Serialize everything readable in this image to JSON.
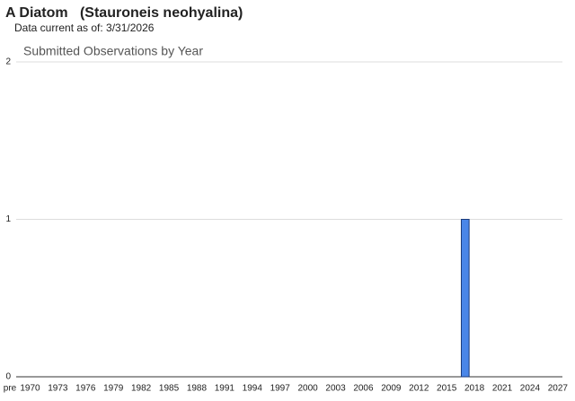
{
  "page_title": "A Diatom   (Stauroneis neohyalina)",
  "data_current": "Data current as of: 3/31/2026",
  "chart_data": {
    "type": "bar",
    "title": "Submitted Observations by Year",
    "categories": [
      "pre",
      "1970",
      null,
      null,
      "1973",
      null,
      null,
      "1976",
      null,
      null,
      "1979",
      null,
      null,
      "1982",
      null,
      null,
      "1985",
      null,
      null,
      "1988",
      null,
      null,
      "1991",
      null,
      null,
      "1994",
      null,
      null,
      "1997",
      null,
      null,
      "2000",
      null,
      null,
      "2003",
      null,
      null,
      "2006",
      null,
      null,
      "2009",
      null,
      null,
      "2012",
      null,
      null,
      "2015",
      null,
      null,
      "2018",
      null,
      null,
      "2021",
      null,
      null,
      "2024",
      null,
      null,
      "2027"
    ],
    "values": [
      0,
      0,
      0,
      0,
      0,
      0,
      0,
      0,
      0,
      0,
      0,
      0,
      0,
      0,
      0,
      0,
      0,
      0,
      0,
      0,
      0,
      0,
      0,
      0,
      0,
      0,
      0,
      0,
      0,
      0,
      0,
      0,
      0,
      0,
      0,
      0,
      0,
      0,
      0,
      0,
      0,
      0,
      0,
      0,
      0,
      0,
      0,
      0,
      1,
      0,
      0,
      0,
      0,
      0,
      0,
      0,
      0,
      0,
      0
    ],
    "color": "#4a86e8",
    "ylim": [
      0,
      2
    ],
    "yticks": [
      0,
      1,
      2
    ],
    "grid": true
  }
}
